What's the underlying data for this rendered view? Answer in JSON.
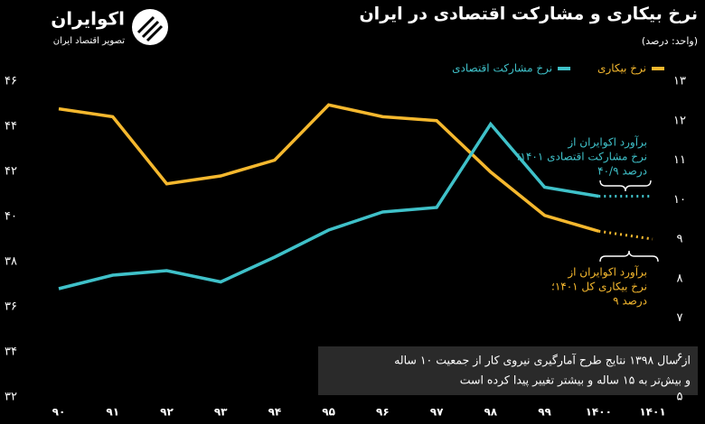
{
  "chart_data": {
    "type": "line",
    "title": "نرخ بیکاری و مشارکت اقتصادی در ایران",
    "subtitle": "(واحد: درصد)",
    "brand": "اکوایران",
    "brand_tagline": "تصویر اقتصاد ایران",
    "categories": [
      "۹۰",
      "۹۱",
      "۹۲",
      "۹۳",
      "۹۴",
      "۹۵",
      "۹۶",
      "۹۷",
      "۹۸",
      "۹۹",
      "۱۴۰۰",
      "۱۴۰۱"
    ],
    "series": [
      {
        "name": "نرخ بیکاری",
        "color": "#f5b82e",
        "axis": "y2",
        "values": [
          12.3,
          12.1,
          10.4,
          10.6,
          11.0,
          12.4,
          12.1,
          12.0,
          10.7,
          9.6,
          9.2,
          9.0
        ]
      },
      {
        "name": "نرخ مشارکت اقتصادی",
        "color": "#3fc1c9",
        "values": [
          36.8,
          37.4,
          37.6,
          37.1,
          38.2,
          39.4,
          40.2,
          40.4,
          44.1,
          41.3,
          40.9,
          40.9
        ]
      }
    ],
    "ylim": [
      32,
      46
    ],
    "yticks": [
      {
        "value": 32,
        "label": "۳۲"
      },
      {
        "value": 34,
        "label": "۳۴"
      },
      {
        "value": 36,
        "label": "۳۶"
      },
      {
        "value": 38,
        "label": "۳۸"
      },
      {
        "value": 40,
        "label": "۴۰"
      },
      {
        "value": 42,
        "label": "۴۲"
      },
      {
        "value": 44,
        "label": "۴۴"
      },
      {
        "value": 46,
        "label": "۴۶"
      }
    ],
    "y2lim": [
      5,
      13
    ],
    "y2ticks": [
      {
        "value": 5,
        "label": "۵"
      },
      {
        "value": 6,
        "label": "۶"
      },
      {
        "value": 7,
        "label": "۷"
      },
      {
        "value": 8,
        "label": "۸"
      },
      {
        "value": 9,
        "label": "۹"
      },
      {
        "value": 10,
        "label": "۱۰"
      },
      {
        "value": 11,
        "label": "۱۱"
      },
      {
        "value": 12,
        "label": "۱۲"
      },
      {
        "value": 13,
        "label": "۱۳"
      }
    ],
    "grid": false,
    "annotations": [
      {
        "lines": [
          "برآورد اکوایران از",
          "نرخ مشارکت اقتصادی ۱۴۰۱؛",
          "۴۰/۹ درصد"
        ],
        "color": "#3fc1c9"
      },
      {
        "lines": [
          "برآورد اکوایران از",
          "نرخ بیکاری کل ۱۴۰۱؛",
          "۹ درصد"
        ],
        "color": "#f5b82e"
      },
      {
        "lines": [
          "از سال ۱۳۹۸ نتایج طرح آمارگیری نیروی کار از جمعیت ۱۰ ساله",
          "و بیش‌تر به ۱۵ ساله و بیشتر تغییر پیدا کرده است"
        ],
        "color": "#ffffff"
      }
    ]
  }
}
